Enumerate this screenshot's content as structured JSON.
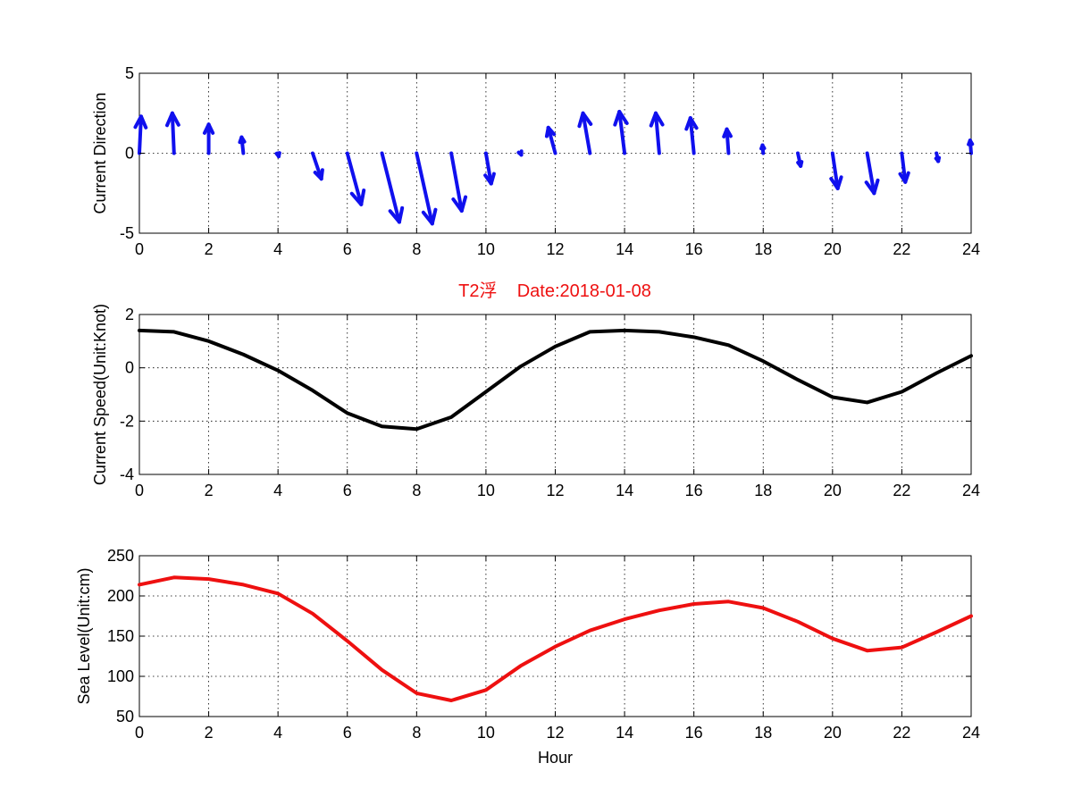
{
  "chart_data": [
    {
      "type": "quiver",
      "ylabel": "Current Direction",
      "xlabel": "",
      "xlim": [
        0,
        24
      ],
      "ylim": [
        -5,
        5
      ],
      "xticks": [
        0,
        2,
        4,
        6,
        8,
        10,
        12,
        14,
        16,
        18,
        20,
        22,
        24
      ],
      "yticks": [
        -5,
        0,
        5
      ],
      "grid": true,
      "color": "#1010ee",
      "x": [
        0,
        1,
        2,
        3,
        4,
        5,
        6,
        7,
        8,
        9,
        10,
        11,
        12,
        13,
        14,
        15,
        16,
        17,
        18,
        19,
        20,
        21,
        22,
        23,
        24
      ],
      "u": [
        0.05,
        -0.05,
        0,
        -0.05,
        0.02,
        0.25,
        0.4,
        0.5,
        0.45,
        0.3,
        0.15,
        0.02,
        -0.2,
        -0.2,
        -0.15,
        -0.1,
        -0.1,
        -0.05,
        -0.02,
        0.08,
        0.15,
        0.2,
        0.1,
        0.05,
        -0.03
      ],
      "v": [
        2.3,
        2.5,
        1.8,
        1.0,
        -0.2,
        -1.6,
        -3.2,
        -4.3,
        -4.4,
        -3.6,
        -1.9,
        -0.1,
        1.6,
        2.5,
        2.6,
        2.5,
        2.2,
        1.5,
        0.5,
        -0.8,
        -2.2,
        -2.5,
        -1.8,
        -0.5,
        0.8
      ]
    },
    {
      "type": "line",
      "ylabel": "Current Speed(Unit:Knot)",
      "xlabel": "",
      "xlim": [
        0,
        24
      ],
      "ylim": [
        -4,
        2
      ],
      "xticks": [
        0,
        2,
        4,
        6,
        8,
        10,
        12,
        14,
        16,
        18,
        20,
        22,
        24
      ],
      "yticks": [
        -4,
        -2,
        0,
        2
      ],
      "grid": true,
      "color": "#000000",
      "x": [
        0,
        1,
        2,
        3,
        4,
        5,
        6,
        7,
        8,
        9,
        10,
        11,
        12,
        13,
        14,
        15,
        16,
        17,
        18,
        19,
        20,
        21,
        22,
        23,
        24
      ],
      "y": [
        1.4,
        1.35,
        1.0,
        0.5,
        -0.1,
        -0.85,
        -1.7,
        -2.2,
        -2.3,
        -1.85,
        -0.9,
        0.05,
        0.8,
        1.35,
        1.4,
        1.35,
        1.15,
        0.85,
        0.25,
        -0.45,
        -1.1,
        -1.3,
        -0.9,
        -0.2,
        0.45
      ]
    },
    {
      "type": "line",
      "ylabel": "Sea Level(Unit:cm)",
      "xlabel": "Hour",
      "xlim": [
        0,
        24
      ],
      "ylim": [
        50,
        250
      ],
      "xticks": [
        0,
        2,
        4,
        6,
        8,
        10,
        12,
        14,
        16,
        18,
        20,
        22,
        24
      ],
      "yticks": [
        50,
        100,
        150,
        200,
        250
      ],
      "grid": true,
      "color": "#ee1010",
      "x": [
        0,
        1,
        2,
        3,
        4,
        5,
        6,
        7,
        8,
        9,
        10,
        11,
        12,
        13,
        14,
        15,
        16,
        17,
        18,
        19,
        20,
        21,
        22,
        23,
        24
      ],
      "y": [
        214,
        223,
        221,
        214,
        203,
        178,
        144,
        108,
        79,
        70,
        83,
        113,
        137,
        157,
        171,
        182,
        190,
        193,
        185,
        168,
        147,
        132,
        136,
        155,
        175
      ]
    }
  ],
  "figure": {
    "title": "T2浮    Date:2018-01-08",
    "title_color": "#ee1010"
  }
}
